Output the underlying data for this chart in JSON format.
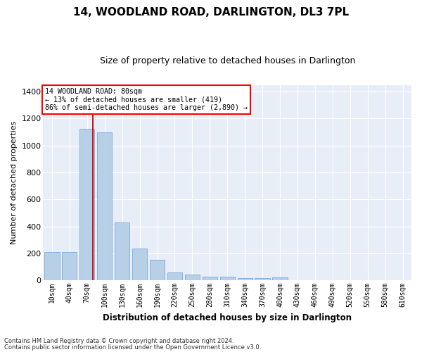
{
  "title": "14, WOODLAND ROAD, DARLINGTON, DL3 7PL",
  "subtitle": "Size of property relative to detached houses in Darlington",
  "xlabel": "Distribution of detached houses by size in Darlington",
  "ylabel": "Number of detached properties",
  "bar_color": "#b8cfe8",
  "bar_edge_color": "#6a9fd8",
  "background_color": "#e8eef8",
  "grid_color": "#ffffff",
  "annotation_text": "14 WOODLAND ROAD: 80sqm\n← 13% of detached houses are smaller (419)\n86% of semi-detached houses are larger (2,890) →",
  "vline_color": "#cc0000",
  "footnote1": "Contains HM Land Registry data © Crown copyright and database right 2024.",
  "footnote2": "Contains public sector information licensed under the Open Government Licence v3.0.",
  "categories": [
    "10sqm",
    "40sqm",
    "70sqm",
    "100sqm",
    "130sqm",
    "160sqm",
    "190sqm",
    "220sqm",
    "250sqm",
    "280sqm",
    "310sqm",
    "340sqm",
    "370sqm",
    "400sqm",
    "430sqm",
    "460sqm",
    "490sqm",
    "520sqm",
    "550sqm",
    "580sqm",
    "610sqm"
  ],
  "bar_values": [
    210,
    210,
    1125,
    1100,
    430,
    235,
    150,
    60,
    40,
    25,
    25,
    15,
    15,
    20,
    0,
    0,
    0,
    0,
    0,
    0,
    0
  ],
  "ylim": [
    0,
    1450
  ],
  "yticks": [
    0,
    200,
    400,
    600,
    800,
    1000,
    1200,
    1400
  ],
  "vline_idx": 2.33
}
